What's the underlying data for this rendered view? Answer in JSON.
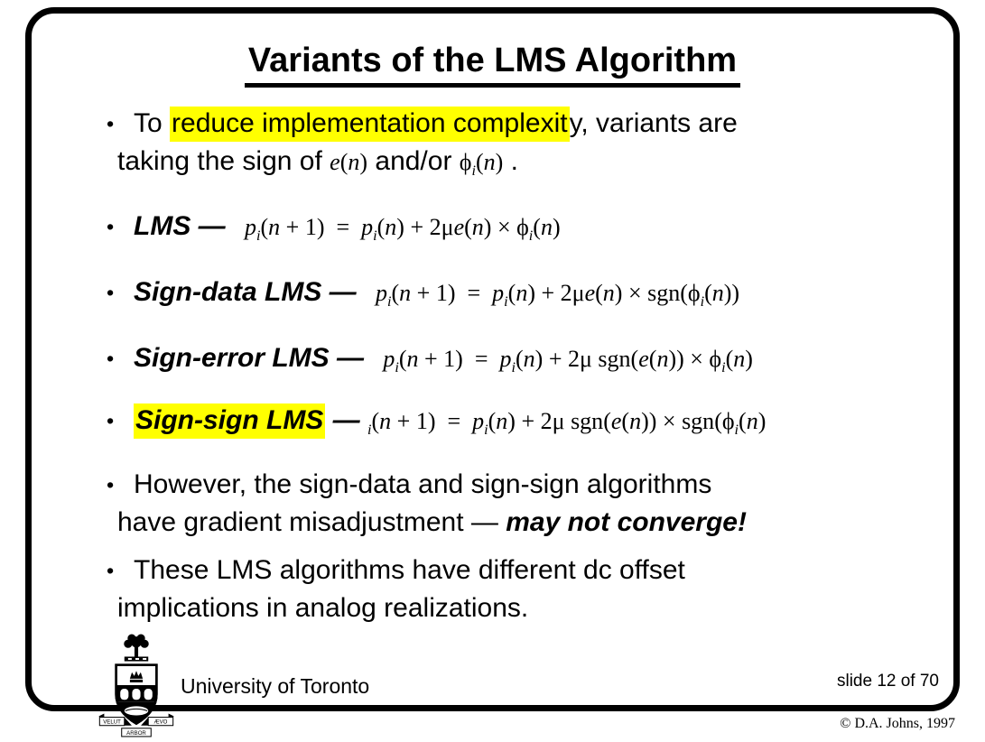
{
  "slide": {
    "title": "Variants of the LMS Algorithm",
    "bullet_marker": "•",
    "highlight_color": "#ffff00",
    "bullets": {
      "intro": {
        "line1": [
          {
            "text": "To "
          },
          {
            "text": "reduce implementation complexit",
            "highlight": true
          },
          {
            "text": "y, variants are"
          }
        ],
        "line2": [
          {
            "text": "taking the sign of "
          },
          {
            "math": "e(n)"
          },
          {
            "text": " and/or "
          },
          {
            "math": "ϕ_i(n)"
          },
          {
            "text": " ."
          }
        ]
      },
      "lms": [
        {
          "text": "LMS",
          "bold_italic": true
        },
        {
          "text": " — ",
          "bold_italic": true
        },
        {
          "math": "  p_i(n + 1)  =  p_i(n) + 2μe(n) × ϕ_i(n)"
        }
      ],
      "sign_data": [
        {
          "text": "Sign-data LMS",
          "bold_italic": true
        },
        {
          "text": " — ",
          "bold_italic": true
        },
        {
          "math": "  p_i(n + 1)  =  p_i(n) + 2μe(n) × sgn(ϕ_i(n))"
        }
      ],
      "sign_error": [
        {
          "text": "Sign-error LMS",
          "bold_italic": true
        },
        {
          "text": " — ",
          "bold_italic": true
        },
        {
          "math": "  p_i(n + 1)  =  p_i(n) + 2μ sgn(e(n)) × ϕ_i(n)"
        }
      ],
      "sign_sign": [
        {
          "text": "Sign-sign LMS",
          "bold_italic": true,
          "highlight": true
        },
        {
          "text": " — ",
          "bold_italic": true
        },
        {
          "math": "_i(n + 1)  =  p_i(n) + 2μ sgn(e(n)) × sgn(ϕ_i(n)"
        }
      ],
      "converge": {
        "line1": [
          {
            "text": "However, the sign-data and sign-sign algorithms"
          }
        ],
        "line2": [
          {
            "text": "have gradient misadjustment — "
          },
          {
            "text": "may not converge!",
            "bold_italic": true
          }
        ]
      },
      "dc_offset": {
        "line1": [
          {
            "text": "These LMS algorithms have different dc offset"
          }
        ],
        "line2": [
          {
            "text": "implications in analog realizations."
          }
        ]
      }
    },
    "footer": {
      "institution": "University of Toronto",
      "slide_label": "slide 12 of 70",
      "copyright": "© D.A. Johns, 1997",
      "logo_mottos": {
        "left": "VELUT",
        "right": "ÆVO",
        "bottom": "ARBOR"
      }
    }
  }
}
